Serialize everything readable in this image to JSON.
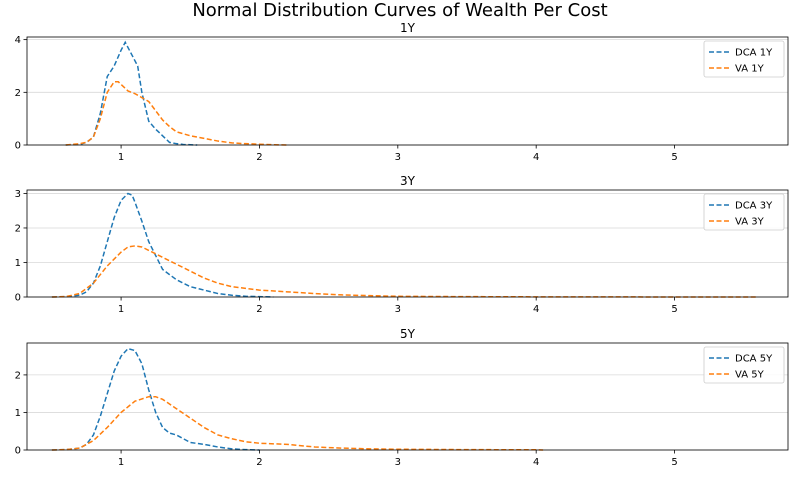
{
  "title": "Normal Distribution Curves of Wealth Per Cost",
  "colors": {
    "dca": "#1f77b4",
    "va": "#ff7f0e",
    "grid": "#d9d9d9",
    "axis": "#000000"
  },
  "chart_data": [
    {
      "type": "line",
      "title": "1Y",
      "xlim": [
        0.32,
        5.82
      ],
      "ylim": [
        0,
        4.1
      ],
      "xticks": [
        1,
        2,
        3,
        4,
        5
      ],
      "yticks": [
        0,
        2,
        4
      ],
      "grid": "horizontal",
      "legend": "top-right",
      "series": [
        {
          "name": "DCA 1Y",
          "color": "#1f77b4",
          "style": "dashed",
          "x": [
            0.6,
            0.7,
            0.75,
            0.8,
            0.85,
            0.9,
            0.95,
            1.0,
            1.03,
            1.05,
            1.08,
            1.12,
            1.15,
            1.2,
            1.25,
            1.3,
            1.35,
            1.4,
            1.45,
            1.5,
            1.55
          ],
          "y": [
            0,
            0.02,
            0.1,
            0.3,
            1.2,
            2.6,
            3.0,
            3.6,
            3.9,
            3.7,
            3.4,
            3.0,
            2.0,
            0.9,
            0.6,
            0.35,
            0.1,
            0.05,
            0.02,
            0.01,
            0
          ]
        },
        {
          "name": "VA 1Y",
          "color": "#ff7f0e",
          "style": "dashed",
          "x": [
            0.6,
            0.7,
            0.75,
            0.8,
            0.85,
            0.9,
            0.95,
            0.98,
            1.0,
            1.05,
            1.1,
            1.15,
            1.2,
            1.25,
            1.3,
            1.35,
            1.4,
            1.5,
            1.6,
            1.7,
            1.8,
            1.9,
            2.0,
            2.1,
            2.2
          ],
          "y": [
            0,
            0.05,
            0.1,
            0.3,
            1.0,
            2.0,
            2.4,
            2.4,
            2.3,
            2.05,
            1.95,
            1.8,
            1.65,
            1.3,
            0.95,
            0.7,
            0.5,
            0.35,
            0.25,
            0.15,
            0.08,
            0.05,
            0.03,
            0.01,
            0
          ]
        }
      ]
    },
    {
      "type": "line",
      "title": "3Y",
      "xlim": [
        0.32,
        5.82
      ],
      "ylim": [
        0,
        3.1
      ],
      "xticks": [
        1,
        2,
        3,
        4,
        5
      ],
      "yticks": [
        0,
        1,
        2,
        3
      ],
      "grid": "horizontal",
      "legend": "top-right",
      "series": [
        {
          "name": "DCA 3Y",
          "color": "#1f77b4",
          "style": "dashed",
          "x": [
            0.5,
            0.6,
            0.7,
            0.75,
            0.8,
            0.85,
            0.9,
            0.95,
            1.0,
            1.05,
            1.08,
            1.1,
            1.15,
            1.2,
            1.25,
            1.3,
            1.4,
            1.5,
            1.6,
            1.7,
            1.8,
            1.9,
            2.0,
            2.1
          ],
          "y": [
            0,
            0.01,
            0.05,
            0.15,
            0.4,
            0.9,
            1.6,
            2.3,
            2.8,
            3.0,
            2.95,
            2.75,
            2.2,
            1.6,
            1.2,
            0.8,
            0.5,
            0.3,
            0.2,
            0.1,
            0.05,
            0.02,
            0.01,
            0
          ]
        },
        {
          "name": "VA 3Y",
          "color": "#ff7f0e",
          "style": "dashed",
          "x": [
            0.5,
            0.6,
            0.7,
            0.8,
            0.85,
            0.9,
            1.0,
            1.05,
            1.1,
            1.15,
            1.2,
            1.3,
            1.4,
            1.5,
            1.6,
            1.7,
            1.8,
            1.9,
            2.0,
            2.2,
            2.4,
            2.6,
            2.8,
            3.0,
            3.5,
            4.0,
            4.5,
            5.0,
            5.6
          ],
          "y": [
            0,
            0.01,
            0.1,
            0.4,
            0.65,
            0.9,
            1.3,
            1.45,
            1.48,
            1.45,
            1.35,
            1.15,
            0.95,
            0.75,
            0.55,
            0.4,
            0.3,
            0.25,
            0.2,
            0.15,
            0.1,
            0.06,
            0.04,
            0.02,
            0.01,
            0.005,
            0.003,
            0.001,
            0
          ]
        }
      ]
    },
    {
      "type": "line",
      "title": "5Y",
      "xlim": [
        0.32,
        5.82
      ],
      "ylim": [
        0,
        2.85
      ],
      "xticks": [
        1,
        2,
        3,
        4,
        5
      ],
      "yticks": [
        0,
        1,
        2
      ],
      "grid": "horizontal",
      "legend": "top-right",
      "series": [
        {
          "name": "DCA 5Y",
          "color": "#1f77b4",
          "style": "dashed",
          "x": [
            0.5,
            0.6,
            0.7,
            0.75,
            0.8,
            0.85,
            0.9,
            0.95,
            1.0,
            1.05,
            1.1,
            1.15,
            1.2,
            1.25,
            1.3,
            1.35,
            1.4,
            1.5,
            1.6,
            1.7,
            1.8,
            1.9,
            2.0
          ],
          "y": [
            0,
            0.01,
            0.05,
            0.15,
            0.4,
            0.9,
            1.5,
            2.1,
            2.5,
            2.7,
            2.65,
            2.3,
            1.6,
            1.0,
            0.6,
            0.45,
            0.4,
            0.2,
            0.15,
            0.08,
            0.03,
            0.01,
            0
          ]
        },
        {
          "name": "VA 5Y",
          "color": "#ff7f0e",
          "style": "dashed",
          "x": [
            0.5,
            0.6,
            0.7,
            0.8,
            0.9,
            1.0,
            1.1,
            1.2,
            1.25,
            1.3,
            1.4,
            1.5,
            1.6,
            1.7,
            1.8,
            1.9,
            2.0,
            2.2,
            2.4,
            2.6,
            2.8,
            3.0,
            3.5,
            4.0,
            4.05
          ],
          "y": [
            0,
            0.01,
            0.05,
            0.25,
            0.6,
            1.0,
            1.3,
            1.42,
            1.42,
            1.35,
            1.1,
            0.85,
            0.6,
            0.4,
            0.3,
            0.22,
            0.18,
            0.15,
            0.08,
            0.05,
            0.03,
            0.02,
            0.01,
            0.005,
            0
          ]
        }
      ]
    }
  ]
}
